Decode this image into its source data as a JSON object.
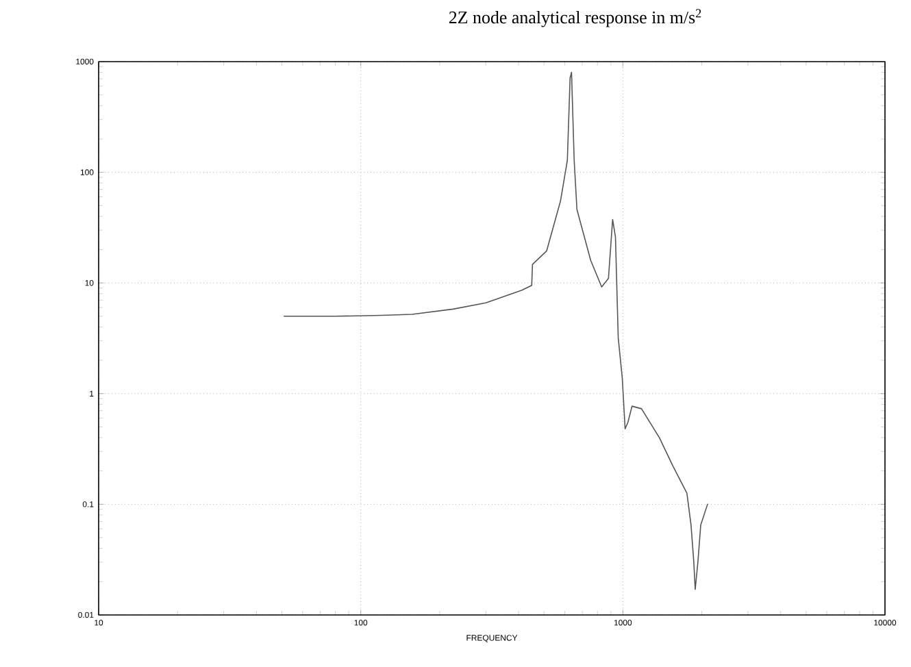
{
  "chart_data": {
    "type": "line",
    "title": "2Z node analytical response in m/s$^{2}$",
    "xlabel": "FREQUENCY",
    "log": "xy",
    "grid": true,
    "marker": "none",
    "line_style": "solid",
    "xlim": [
      10,
      10000
    ],
    "xticks": [
      10,
      100,
      1000,
      10000
    ],
    "ylim": [
      0.01,
      1000
    ],
    "yticks": [
      0.01,
      0.1,
      1,
      10,
      100,
      1000
    ],
    "series": [
      {
        "color": "#555555",
        "x": [
          51,
          80,
          120,
          157,
          225,
          300,
          412,
          449,
          452,
          512,
          578,
          614,
          629,
          637,
          652,
          668,
          754,
          830,
          881,
          914,
          937,
          960,
          995,
          1020,
          1045,
          1084,
          1178,
          1378,
          1555,
          1755,
          1820,
          1865,
          1888,
          1933,
          1982,
          2104
        ],
        "values": [
          5.0,
          5.0,
          5.1,
          5.2,
          5.8,
          6.6,
          8.6,
          9.5,
          14.7,
          19.5,
          54.8,
          128,
          710,
          800,
          128,
          46,
          16,
          9.2,
          11,
          37.5,
          26,
          3.2,
          1.37,
          0.48,
          0.55,
          0.77,
          0.73,
          0.4,
          0.22,
          0.126,
          0.065,
          0.03,
          0.017,
          0.03,
          0.065,
          0.1
        ]
      }
    ]
  }
}
